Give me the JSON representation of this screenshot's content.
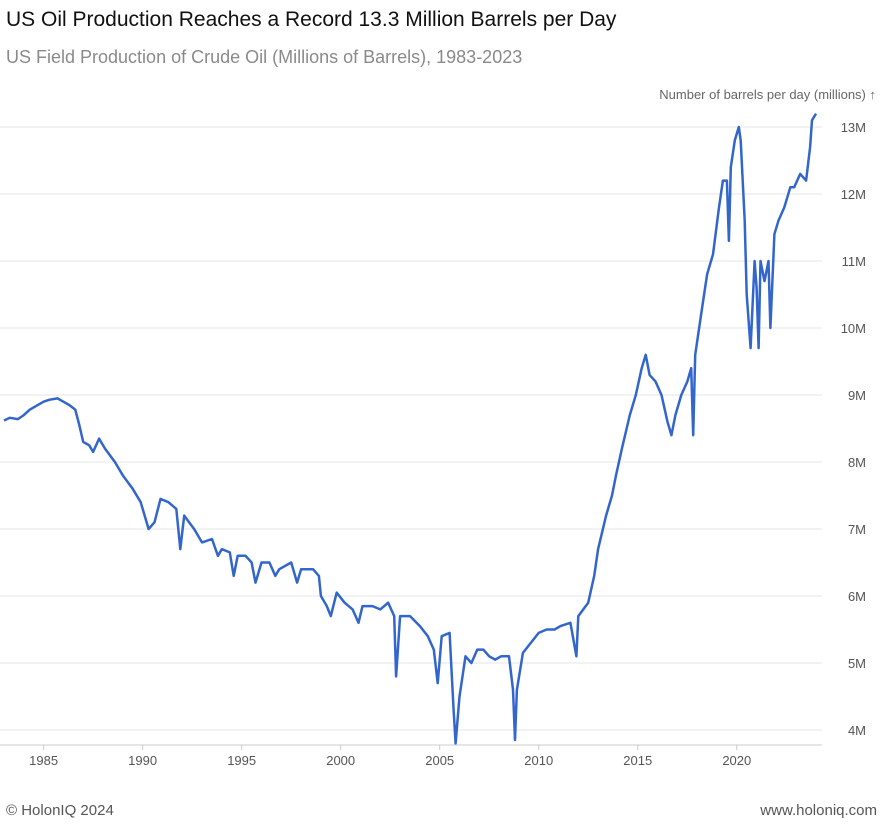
{
  "header": {
    "title": "US Oil Production Reaches a Record 13.3 Million Barrels per Day",
    "subtitle": "US Field Production of Crude Oil (Millions of Barrels), 1983-2023"
  },
  "footer": {
    "copyright": "© HolonIQ 2024",
    "website": "www.holoniq.com"
  },
  "colors": {
    "line": "#3366cc",
    "grid": "#e6e6e6",
    "text": "#555555"
  },
  "chart_data": {
    "type": "line",
    "title": "US Oil Production Reaches a Record 13.3 Million Barrels per Day",
    "subtitle": "US Field Production of Crude Oil (Millions of Barrels), 1983-2023",
    "xlabel": "",
    "ylabel": "Number of barrels per day (millions) ↑",
    "xlim": [
      1983.0,
      2024.0
    ],
    "ylim": [
      3.8,
      13.3
    ],
    "x_ticks": [
      1985,
      1990,
      1995,
      2000,
      2005,
      2010,
      2015,
      2020
    ],
    "y_ticks": [
      4,
      5,
      6,
      7,
      8,
      9,
      10,
      11,
      12,
      13
    ],
    "y_tick_labels": [
      "4M",
      "5M",
      "6M",
      "7M",
      "8M",
      "9M",
      "10M",
      "11M",
      "12M",
      "13M"
    ],
    "grid": "horizontal",
    "legend": "none",
    "series": [
      {
        "points": [
          [
            1983.0,
            8.62
          ],
          [
            1983.3,
            8.66
          ],
          [
            1983.7,
            8.64
          ],
          [
            1984.0,
            8.7
          ],
          [
            1984.3,
            8.78
          ],
          [
            1984.7,
            8.85
          ],
          [
            1985.0,
            8.9
          ],
          [
            1985.3,
            8.93
          ],
          [
            1985.7,
            8.95
          ],
          [
            1986.0,
            8.9
          ],
          [
            1986.3,
            8.85
          ],
          [
            1986.6,
            8.78
          ],
          [
            1986.8,
            8.55
          ],
          [
            1987.0,
            8.3
          ],
          [
            1987.3,
            8.25
          ],
          [
            1987.5,
            8.15
          ],
          [
            1987.8,
            8.35
          ],
          [
            1988.1,
            8.2
          ],
          [
            1988.6,
            8.0
          ],
          [
            1989.0,
            7.8
          ],
          [
            1989.5,
            7.6
          ],
          [
            1989.9,
            7.4
          ],
          [
            1990.3,
            7.0
          ],
          [
            1990.6,
            7.1
          ],
          [
            1990.9,
            7.45
          ],
          [
            1991.3,
            7.4
          ],
          [
            1991.7,
            7.3
          ],
          [
            1991.9,
            6.7
          ],
          [
            1992.1,
            7.2
          ],
          [
            1992.6,
            7.0
          ],
          [
            1993.0,
            6.8
          ],
          [
            1993.5,
            6.85
          ],
          [
            1993.8,
            6.6
          ],
          [
            1994.0,
            6.7
          ],
          [
            1994.4,
            6.65
          ],
          [
            1994.6,
            6.3
          ],
          [
            1994.8,
            6.6
          ],
          [
            1995.2,
            6.6
          ],
          [
            1995.5,
            6.5
          ],
          [
            1995.7,
            6.2
          ],
          [
            1996.0,
            6.5
          ],
          [
            1996.4,
            6.5
          ],
          [
            1996.7,
            6.3
          ],
          [
            1996.9,
            6.4
          ],
          [
            1997.5,
            6.5
          ],
          [
            1997.8,
            6.2
          ],
          [
            1998.0,
            6.4
          ],
          [
            1998.6,
            6.4
          ],
          [
            1998.9,
            6.3
          ],
          [
            1999.0,
            6.0
          ],
          [
            1999.3,
            5.85
          ],
          [
            1999.5,
            5.7
          ],
          [
            1999.8,
            6.05
          ],
          [
            2000.2,
            5.9
          ],
          [
            2000.6,
            5.8
          ],
          [
            2000.9,
            5.6
          ],
          [
            2001.1,
            5.85
          ],
          [
            2001.6,
            5.85
          ],
          [
            2002.0,
            5.8
          ],
          [
            2002.4,
            5.9
          ],
          [
            2002.7,
            5.7
          ],
          [
            2002.8,
            4.8
          ],
          [
            2003.0,
            5.7
          ],
          [
            2003.5,
            5.7
          ],
          [
            2004.0,
            5.55
          ],
          [
            2004.4,
            5.4
          ],
          [
            2004.7,
            5.2
          ],
          [
            2004.9,
            4.7
          ],
          [
            2005.1,
            5.4
          ],
          [
            2005.5,
            5.45
          ],
          [
            2005.7,
            4.3
          ],
          [
            2005.8,
            3.8
          ],
          [
            2006.0,
            4.5
          ],
          [
            2006.3,
            5.1
          ],
          [
            2006.6,
            5.0
          ],
          [
            2006.9,
            5.2
          ],
          [
            2007.2,
            5.2
          ],
          [
            2007.5,
            5.1
          ],
          [
            2007.8,
            5.05
          ],
          [
            2008.1,
            5.1
          ],
          [
            2008.5,
            5.1
          ],
          [
            2008.7,
            4.6
          ],
          [
            2008.8,
            3.85
          ],
          [
            2008.9,
            4.6
          ],
          [
            2009.2,
            5.15
          ],
          [
            2009.6,
            5.3
          ],
          [
            2010.0,
            5.45
          ],
          [
            2010.4,
            5.5
          ],
          [
            2010.8,
            5.5
          ],
          [
            2011.1,
            5.55
          ],
          [
            2011.6,
            5.6
          ],
          [
            2011.9,
            5.1
          ],
          [
            2012.0,
            5.7
          ],
          [
            2012.5,
            5.9
          ],
          [
            2012.8,
            6.3
          ],
          [
            2013.0,
            6.7
          ],
          [
            2013.4,
            7.2
          ],
          [
            2013.7,
            7.5
          ],
          [
            2013.9,
            7.8
          ],
          [
            2014.2,
            8.2
          ],
          [
            2014.6,
            8.7
          ],
          [
            2014.9,
            9.0
          ],
          [
            2015.2,
            9.4
          ],
          [
            2015.4,
            9.6
          ],
          [
            2015.6,
            9.3
          ],
          [
            2015.9,
            9.2
          ],
          [
            2016.2,
            9.0
          ],
          [
            2016.5,
            8.6
          ],
          [
            2016.7,
            8.4
          ],
          [
            2016.9,
            8.7
          ],
          [
            2017.2,
            9.0
          ],
          [
            2017.5,
            9.2
          ],
          [
            2017.7,
            9.4
          ],
          [
            2017.8,
            8.4
          ],
          [
            2017.9,
            9.6
          ],
          [
            2018.2,
            10.2
          ],
          [
            2018.5,
            10.8
          ],
          [
            2018.8,
            11.1
          ],
          [
            2019.1,
            11.8
          ],
          [
            2019.3,
            12.2
          ],
          [
            2019.5,
            12.2
          ],
          [
            2019.6,
            11.3
          ],
          [
            2019.7,
            12.4
          ],
          [
            2019.9,
            12.8
          ],
          [
            2020.1,
            13.0
          ],
          [
            2020.2,
            12.8
          ],
          [
            2020.4,
            11.6
          ],
          [
            2020.5,
            10.5
          ],
          [
            2020.7,
            9.7
          ],
          [
            2020.9,
            11.0
          ],
          [
            2021.0,
            10.6
          ],
          [
            2021.1,
            9.7
          ],
          [
            2021.2,
            11.0
          ],
          [
            2021.4,
            10.7
          ],
          [
            2021.6,
            11.0
          ],
          [
            2021.7,
            10.0
          ],
          [
            2021.9,
            11.4
          ],
          [
            2022.1,
            11.6
          ],
          [
            2022.4,
            11.8
          ],
          [
            2022.7,
            12.1
          ],
          [
            2022.9,
            12.1
          ],
          [
            2023.2,
            12.3
          ],
          [
            2023.5,
            12.2
          ],
          [
            2023.7,
            12.7
          ],
          [
            2023.8,
            13.1
          ],
          [
            2024.0,
            13.2
          ]
        ]
      }
    ]
  }
}
